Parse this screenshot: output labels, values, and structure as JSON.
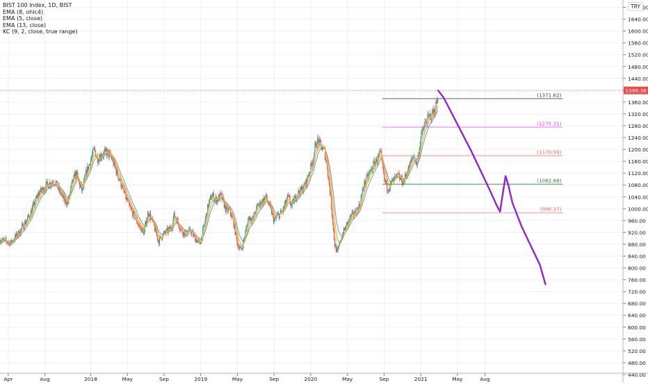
{
  "legend": {
    "symbol": "BIST 100 Index, 1D, BIST",
    "ema1": "EMA (8, ohlc4)",
    "ema2": "EMA (5, close)",
    "ema3": "EMA (13, close)",
    "kc": "KC (9, 2, close, true range)"
  },
  "currency": "TRY",
  "price_badge": "1399.36",
  "colors": {
    "up": "#26a69a",
    "down": "#ef5350",
    "ema_orange": "#ff9800",
    "ema_blue": "#4a90d9",
    "projection": "#8e24d6",
    "level_gray": "#444444",
    "level_magenta": "#e040fb",
    "level_red": "#f06a6a",
    "level_green": "#2e7d32",
    "badge": "#f04a4a"
  },
  "chart_data": {
    "type": "candlestick",
    "y_axis": {
      "min": 400,
      "max": 1700,
      "ticks": [
        "440.00",
        "480.00",
        "520.00",
        "560.00",
        "600.00",
        "640.00",
        "680.00",
        "720.00",
        "760.00",
        "800.00",
        "840.00",
        "880.00",
        "920.00",
        "960.00",
        "1000.00",
        "1040.00",
        "1080.00",
        "1120.00",
        "1160.00",
        "1200.00",
        "1240.00",
        "1280.00",
        "1320.00",
        "1360.00",
        "1400.00",
        "1440.00",
        "1480.00",
        "1520.00",
        "1560.00",
        "1600.00",
        "1640.00",
        "1680.00"
      ]
    },
    "x_axis": {
      "ticks": [
        {
          "label": "Apr",
          "month": 0
        },
        {
          "label": "Aug",
          "month": 4
        },
        {
          "label": "2018",
          "month": 9
        },
        {
          "label": "May",
          "month": 13
        },
        {
          "label": "Sep",
          "month": 17
        },
        {
          "label": "2019",
          "month": 21
        },
        {
          "label": "May",
          "month": 25
        },
        {
          "label": "Sep",
          "month": 29
        },
        {
          "label": "2020",
          "month": 33
        },
        {
          "label": "May",
          "month": 37
        },
        {
          "label": "Sep",
          "month": 41
        },
        {
          "label": "2021",
          "month": 45
        },
        {
          "label": "May",
          "month": 49
        },
        {
          "label": "Aug",
          "month": 52
        }
      ],
      "month_range": [
        -0.9,
        55
      ]
    },
    "price_path": [
      [
        -0.9,
        895
      ],
      [
        0.3,
        885
      ],
      [
        1.2,
        920
      ],
      [
        2.3,
        975
      ],
      [
        3.3,
        1050
      ],
      [
        4.2,
        1080
      ],
      [
        5.0,
        1095
      ],
      [
        5.6,
        1060
      ],
      [
        6.1,
        1030
      ],
      [
        6.5,
        1020
      ],
      [
        7.0,
        1090
      ],
      [
        7.4,
        1120
      ],
      [
        7.8,
        1080
      ],
      [
        8.1,
        1060
      ],
      [
        8.5,
        1120
      ],
      [
        9.0,
        1165
      ],
      [
        9.4,
        1200
      ],
      [
        9.7,
        1170
      ],
      [
        10.3,
        1185
      ],
      [
        10.8,
        1190
      ],
      [
        11.3,
        1170
      ],
      [
        11.7,
        1135
      ],
      [
        12.3,
        1085
      ],
      [
        12.8,
        1040
      ],
      [
        13.3,
        1000
      ],
      [
        13.8,
        975
      ],
      [
        14.2,
        945
      ],
      [
        14.8,
        920
      ],
      [
        15.3,
        990
      ],
      [
        15.8,
        950
      ],
      [
        16.4,
        890
      ],
      [
        16.8,
        910
      ],
      [
        17.2,
        920
      ],
      [
        17.8,
        935
      ],
      [
        18.1,
        980
      ],
      [
        18.5,
        955
      ],
      [
        18.9,
        925
      ],
      [
        19.4,
        915
      ],
      [
        19.9,
        925
      ],
      [
        20.4,
        900
      ],
      [
        20.9,
        880
      ],
      [
        21.3,
        930
      ],
      [
        21.8,
        1010
      ],
      [
        22.2,
        1045
      ],
      [
        22.7,
        1030
      ],
      [
        23.2,
        1045
      ],
      [
        23.7,
        1000
      ],
      [
        24.2,
        990
      ],
      [
        24.6,
        950
      ],
      [
        25.0,
        880
      ],
      [
        25.4,
        860
      ],
      [
        25.8,
        905
      ],
      [
        26.2,
        970
      ],
      [
        26.7,
        965
      ],
      [
        27.2,
        1010
      ],
      [
        27.6,
        1020
      ],
      [
        28.1,
        1040
      ],
      [
        28.6,
        1000
      ],
      [
        29.0,
        960
      ],
      [
        29.4,
        975
      ],
      [
        29.9,
        990
      ],
      [
        30.5,
        1040
      ],
      [
        30.9,
        1010
      ],
      [
        31.5,
        1050
      ],
      [
        31.9,
        1060
      ],
      [
        32.4,
        1080
      ],
      [
        32.8,
        1120
      ],
      [
        33.2,
        1160
      ],
      [
        33.5,
        1210
      ],
      [
        33.8,
        1230
      ],
      [
        34.1,
        1210
      ],
      [
        34.5,
        1195
      ],
      [
        34.8,
        1140
      ],
      [
        35.1,
        1060
      ],
      [
        35.4,
        960
      ],
      [
        35.6,
        880
      ],
      [
        35.9,
        850
      ],
      [
        36.3,
        900
      ],
      [
        36.7,
        930
      ],
      [
        37.3,
        970
      ],
      [
        37.8,
        985
      ],
      [
        38.3,
        1010
      ],
      [
        38.8,
        1080
      ],
      [
        39.4,
        1120
      ],
      [
        40.0,
        1155
      ],
      [
        40.6,
        1185
      ],
      [
        40.8,
        1150
      ],
      [
        41.0,
        1100
      ],
      [
        41.4,
        1070
      ],
      [
        41.9,
        1090
      ],
      [
        42.5,
        1110
      ],
      [
        43.1,
        1090
      ],
      [
        43.6,
        1130
      ],
      [
        44.2,
        1180
      ],
      [
        44.6,
        1150
      ],
      [
        45.0,
        1240
      ],
      [
        45.5,
        1290
      ],
      [
        46.0,
        1310
      ],
      [
        46.5,
        1330
      ],
      [
        46.9,
        1380
      ]
    ],
    "projection_path": [
      [
        46.9,
        1399
      ],
      [
        47.5,
        1375
      ],
      [
        48.5,
        1315
      ],
      [
        49.5,
        1255
      ],
      [
        50.5,
        1195
      ],
      [
        51.5,
        1130
      ],
      [
        52.5,
        1065
      ],
      [
        53.3,
        1010
      ],
      [
        53.65,
        990
      ],
      [
        54.0,
        1060
      ],
      [
        54.25,
        1110
      ],
      [
        54.55,
        1080
      ],
      [
        55.0,
        1020
      ],
      [
        56.0,
        940
      ],
      [
        57.0,
        875
      ],
      [
        58.0,
        810
      ],
      [
        58.6,
        745
      ]
    ],
    "levels": [
      {
        "label": "(1371.62)",
        "value": 1371.62,
        "color": "level_gray",
        "from": 40.8,
        "to": 60.5
      },
      {
        "label": "(1275.31)",
        "value": 1275.31,
        "color": "level_magenta",
        "from": 40.8,
        "to": 60.5
      },
      {
        "label": "(1178.99)",
        "value": 1178.99,
        "color": "level_red",
        "from": 40.8,
        "to": 60.5
      },
      {
        "label": "(1082.68)",
        "value": 1082.68,
        "color": "level_green",
        "from": 40.8,
        "to": 60.5
      },
      {
        "label": "(986.37)",
        "value": 986.37,
        "color": "level_red",
        "from": 40.8,
        "to": 60.5
      }
    ],
    "last_price": 1399.36
  }
}
